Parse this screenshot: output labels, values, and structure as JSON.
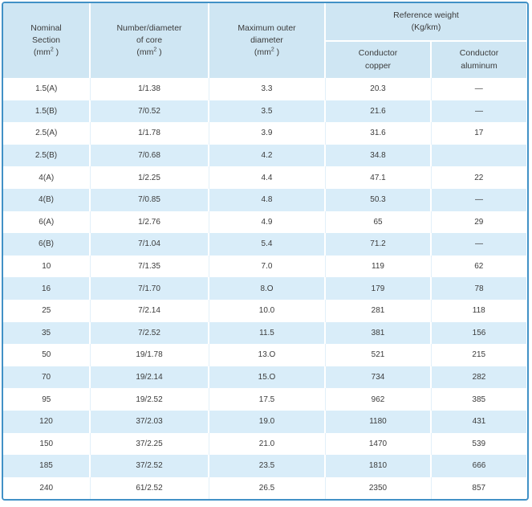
{
  "colors": {
    "frame_border": "#4191c6",
    "header_bg": "#cfe6f3",
    "stripe_row_bg": "#d9edf9",
    "plain_row_bg": "#ffffff",
    "text": "#3b3b3b"
  },
  "header": {
    "nominal": {
      "line1": "Nominal",
      "line2": "Section",
      "unit_open": "(mm",
      "unit_sup": "2",
      "unit_close": " )"
    },
    "core": {
      "line1": "Number/diameter",
      "line2": "of core",
      "unit_open": "(mm",
      "unit_sup": "2",
      "unit_close": " )"
    },
    "outer": {
      "line1": "Maximum outer",
      "line2": "diameter",
      "unit_open": "(mm",
      "unit_sup": "2",
      "unit_close": " )"
    },
    "reference": {
      "line1": "Reference weight",
      "line2": "(Kg/km)"
    },
    "copper": {
      "line1": "Conductor",
      "line2": "copper"
    },
    "aluminum": {
      "line1": "Conductor",
      "line2": "aluminum"
    }
  },
  "rows": [
    [
      "1.5(A)",
      "1/1.38",
      "3.3",
      "20.3",
      "—"
    ],
    [
      "1.5(B)",
      "7/0.52",
      "3.5",
      "21.6",
      "—"
    ],
    [
      "2.5(A)",
      "1/1.78",
      "3.9",
      "31.6",
      "17"
    ],
    [
      "2.5(B)",
      "7/0.68",
      "4.2",
      "34.8",
      ""
    ],
    [
      "4(A)",
      "1/2.25",
      "4.4",
      "47.1",
      "22"
    ],
    [
      "4(B)",
      "7/0.85",
      "4.8",
      "50.3",
      "—"
    ],
    [
      "6(A)",
      "1/2.76",
      "4.9",
      "65",
      "29"
    ],
    [
      "6(B)",
      "7/1.04",
      "5.4",
      "71.2",
      "—"
    ],
    [
      "10",
      "7/1.35",
      "7.0",
      "119",
      "62"
    ],
    [
      "16",
      "7/1.70",
      "8.O",
      "179",
      "78"
    ],
    [
      "25",
      "7/2.14",
      "10.0",
      "281",
      "118"
    ],
    [
      "35",
      "7/2.52",
      "11.5",
      "381",
      "156"
    ],
    [
      "50",
      "19/1.78",
      "13.O",
      "521",
      "215"
    ],
    [
      "70",
      "19/2.14",
      "15.O",
      "734",
      "282"
    ],
    [
      "95",
      "19/2.52",
      "17.5",
      "962",
      "385"
    ],
    [
      "120",
      "37/2.03",
      "19.0",
      "1180",
      "431"
    ],
    [
      "150",
      "37/2.25",
      "21.0",
      "1470",
      "539"
    ],
    [
      "185",
      "37/2.52",
      "23.5",
      "1810",
      "666"
    ],
    [
      "240",
      "61/2.52",
      "26.5",
      "2350",
      "857"
    ]
  ]
}
